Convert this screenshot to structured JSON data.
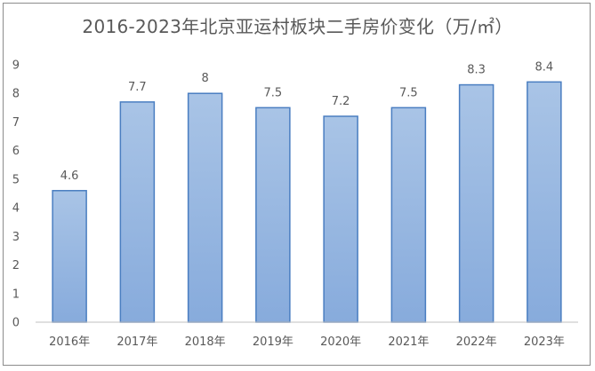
{
  "chart_data": {
    "type": "bar",
    "title": "2016-2023年北京亚运村板块二手房价变化（万/㎡）",
    "categories": [
      "2016年",
      "2017年",
      "2018年",
      "2019年",
      "2020年",
      "2021年",
      "2022年",
      "2023年"
    ],
    "values": [
      4.6,
      7.7,
      8,
      7.5,
      7.2,
      7.5,
      8.3,
      8.4
    ],
    "value_labels": [
      "4.6",
      "7.7",
      "8",
      "7.5",
      "7.2",
      "7.5",
      "8.3",
      "8.4"
    ],
    "yticks": [
      "0",
      "1",
      "2",
      "3",
      "4",
      "5",
      "6",
      "7",
      "8",
      "9"
    ],
    "ylim": [
      0,
      9
    ],
    "xlabel": "",
    "ylabel": "",
    "grid": false,
    "legend": "none",
    "colors": {
      "bar_top": "#a9c4e6",
      "bar_bottom": "#87abdc",
      "bar_stroke": "#4a7ec1",
      "axis": "#bfbfbf",
      "text": "#595959"
    }
  }
}
